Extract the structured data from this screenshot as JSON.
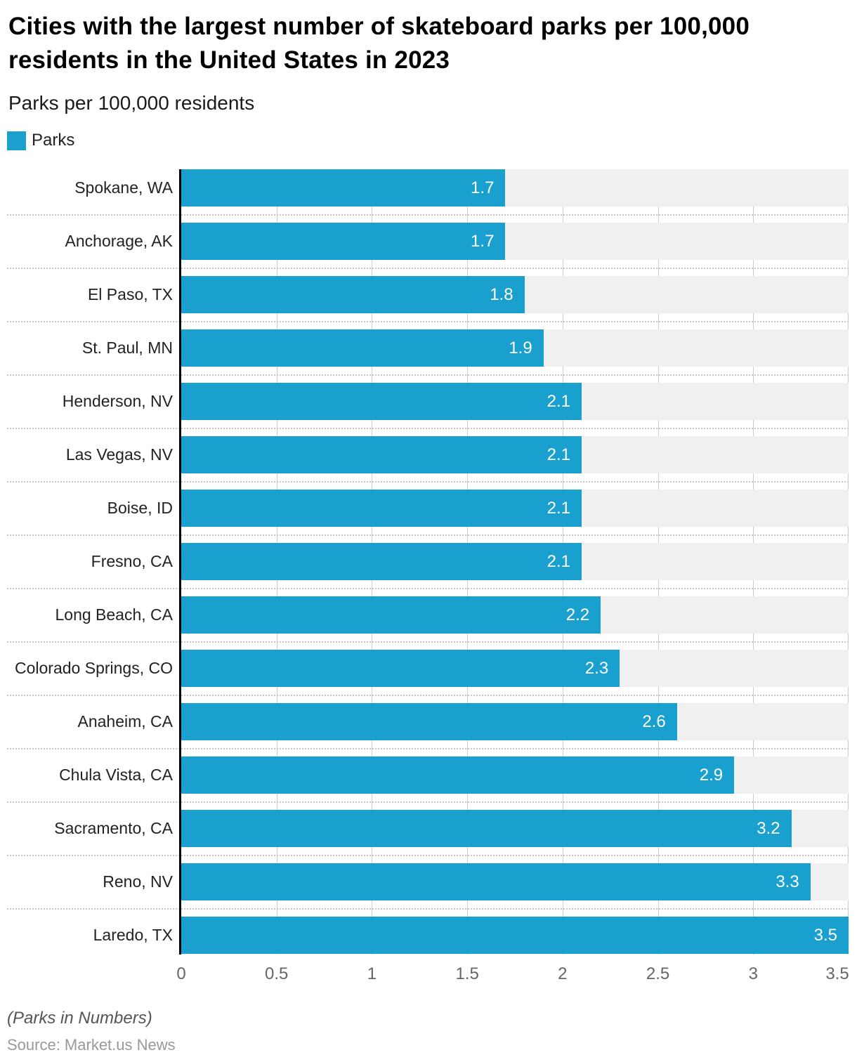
{
  "header": {
    "title": "Cities with the largest number of skateboard parks per 100,000 residents in the United States in 2023",
    "subtitle": "Parks per 100,000 residents"
  },
  "legend": {
    "label": "Parks"
  },
  "footer": {
    "note": "(Parks in Numbers)",
    "source": "Source: Market.us News"
  },
  "colors": {
    "bar": "#1aa0cf",
    "track": "#f0f0f0",
    "gridline": "#cccccc",
    "separator": "#c8c8c8",
    "axis_line": "#000000",
    "tick_label": "#666666",
    "category_label": "#222222",
    "value_label": "#ffffff"
  },
  "chart_data": {
    "type": "bar",
    "orientation": "horizontal",
    "title": "Cities with the largest number of skateboard parks per 100,000 residents in the United States in 2023",
    "subtitle": "Parks per 100,000 residents",
    "series_name": "Parks",
    "categories": [
      "Spokane, WA",
      "Anchorage, AK",
      "El Paso, TX",
      "St. Paul, MN",
      "Henderson, NV",
      "Las Vegas, NV",
      "Boise, ID",
      "Fresno, CA",
      "Long Beach, CA",
      "Colorado Springs, CO",
      "Anaheim, CA",
      "Chula Vista, CA",
      "Sacramento, CA",
      "Reno, NV",
      "Laredo, TX"
    ],
    "values": [
      1.7,
      1.7,
      1.8,
      1.9,
      2.1,
      2.1,
      2.1,
      2.1,
      2.2,
      2.3,
      2.6,
      2.9,
      3.2,
      3.3,
      3.5
    ],
    "xlim": [
      0,
      3.5
    ],
    "xticks": [
      0,
      0.5,
      1,
      1.5,
      2,
      2.5,
      3,
      3.5
    ],
    "xtick_labels": [
      "0",
      "0.5",
      "1",
      "1.5",
      "2",
      "2.5",
      "3",
      "3.5"
    ],
    "grid": "vertical",
    "legend_position": "top-left",
    "value_labels": "inside-end"
  }
}
